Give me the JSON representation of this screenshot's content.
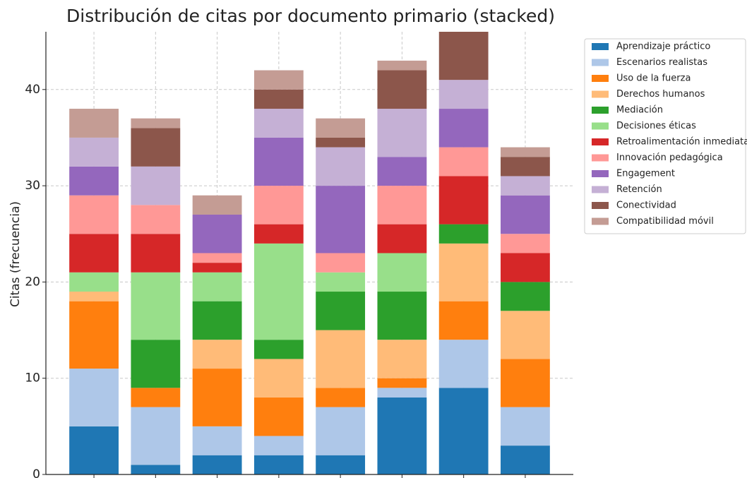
{
  "chart_data": {
    "type": "stacked_bar",
    "title": "Distribución de citas por documento primario (stacked)",
    "y_label": "Citas (frecuencia)",
    "categories": [
      null,
      null,
      null,
      null,
      null,
      null,
      null,
      null
    ],
    "ylim": [
      0,
      46
    ],
    "yticks": [
      0,
      10,
      20,
      30,
      40
    ],
    "grid": true,
    "legend": "outside-upper-right",
    "series": [
      {
        "name": "Aprendizaje práctico",
        "color": "#1f77b4",
        "values": [
          5,
          1,
          2,
          2,
          2,
          8,
          9,
          3
        ]
      },
      {
        "name": "Escenarios realistas",
        "color": "#aec7e8",
        "values": [
          6,
          6,
          3,
          2,
          5,
          1,
          5,
          4
        ]
      },
      {
        "name": "Uso de la fuerza",
        "color": "#ff7f0e",
        "values": [
          7,
          2,
          6,
          4,
          2,
          1,
          4,
          5
        ]
      },
      {
        "name": "Derechos humanos",
        "color": "#ffbb78",
        "values": [
          1,
          0,
          3,
          4,
          6,
          4,
          6,
          5
        ]
      },
      {
        "name": "Mediación",
        "color": "#2ca02c",
        "values": [
          0,
          5,
          4,
          2,
          4,
          5,
          2,
          3
        ]
      },
      {
        "name": "Decisiones éticas",
        "color": "#98df8a",
        "values": [
          2,
          7,
          3,
          10,
          2,
          4,
          0,
          0
        ]
      },
      {
        "name": "Retroalimentación inmediata",
        "color": "#d62728",
        "values": [
          4,
          4,
          1,
          2,
          0,
          3,
          5,
          3
        ]
      },
      {
        "name": "Innovación pedagógica",
        "color": "#ff9896",
        "values": [
          4,
          3,
          1,
          4,
          2,
          4,
          3,
          2
        ]
      },
      {
        "name": "Engagement",
        "color": "#9467bd",
        "values": [
          3,
          0,
          4,
          5,
          7,
          3,
          4,
          4
        ]
      },
      {
        "name": "Retención",
        "color": "#c5b0d5",
        "values": [
          3,
          4,
          0,
          3,
          4,
          5,
          3,
          2
        ]
      },
      {
        "name": "Conectividad",
        "color": "#8c564b",
        "values": [
          0,
          4,
          0,
          2,
          1,
          4,
          5,
          2
        ]
      },
      {
        "name": "Compatibilidad móvil",
        "color": "#c49c94",
        "values": [
          3,
          1,
          2,
          2,
          2,
          1,
          0,
          1
        ]
      }
    ]
  }
}
